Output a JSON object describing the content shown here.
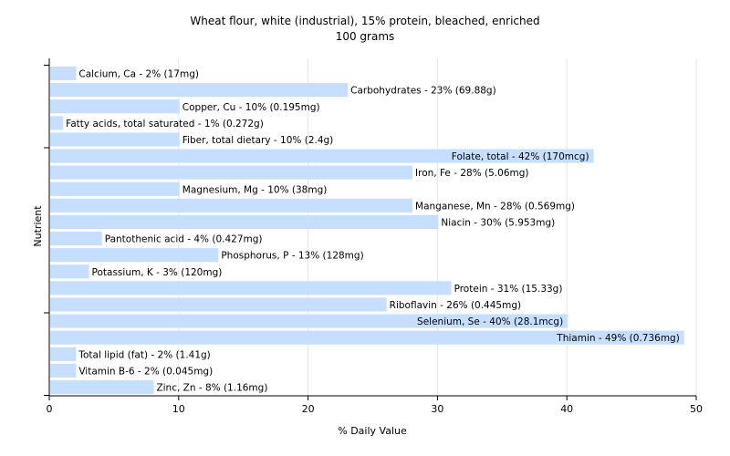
{
  "chart_data": {
    "type": "bar",
    "orientation": "horizontal",
    "title": "Wheat flour, white (industrial), 15% protein, bleached, enriched",
    "subtitle": "100 grams",
    "xlabel": "% Daily Value",
    "ylabel": "Nutrient",
    "xlim": [
      0,
      50
    ],
    "xticks": [
      0,
      10,
      20,
      30,
      40,
      50
    ],
    "grid": true,
    "bar_color": "#c6deff",
    "bars": [
      {
        "category": "Calcium, Ca",
        "value": 2,
        "label": "Calcium, Ca - 2% (17mg)"
      },
      {
        "category": "Carbohydrates",
        "value": 23,
        "label": "Carbohydrates - 23% (69.88g)"
      },
      {
        "category": "Copper, Cu",
        "value": 10,
        "label": "Copper, Cu - 10% (0.195mg)"
      },
      {
        "category": "Fatty acids, total saturated",
        "value": 1,
        "label": "Fatty acids, total saturated - 1% (0.272g)"
      },
      {
        "category": "Fiber, total dietary",
        "value": 10,
        "label": "Fiber, total dietary - 10% (2.4g)"
      },
      {
        "category": "Folate, total",
        "value": 42,
        "label": "Folate, total - 42% (170mcg)"
      },
      {
        "category": "Iron, Fe",
        "value": 28,
        "label": "Iron, Fe - 28% (5.06mg)"
      },
      {
        "category": "Magnesium, Mg",
        "value": 10,
        "label": "Magnesium, Mg - 10% (38mg)"
      },
      {
        "category": "Manganese, Mn",
        "value": 28,
        "label": "Manganese, Mn - 28% (0.569mg)"
      },
      {
        "category": "Niacin",
        "value": 30,
        "label": "Niacin - 30% (5.953mg)"
      },
      {
        "category": "Pantothenic acid",
        "value": 4,
        "label": "Pantothenic acid - 4% (0.427mg)"
      },
      {
        "category": "Phosphorus, P",
        "value": 13,
        "label": "Phosphorus, P - 13% (128mg)"
      },
      {
        "category": "Potassium, K",
        "value": 3,
        "label": "Potassium, K - 3% (120mg)"
      },
      {
        "category": "Protein",
        "value": 31,
        "label": "Protein - 31% (15.33g)"
      },
      {
        "category": "Riboflavin",
        "value": 26,
        "label": "Riboflavin - 26% (0.445mg)"
      },
      {
        "category": "Selenium, Se",
        "value": 40,
        "label": "Selenium, Se - 40% (28.1mcg)"
      },
      {
        "category": "Thiamin",
        "value": 49,
        "label": "Thiamin - 49% (0.736mg)"
      },
      {
        "category": "Total lipid (fat)",
        "value": 2,
        "label": "Total lipid (fat) - 2% (1.41g)"
      },
      {
        "category": "Vitamin B-6",
        "value": 2,
        "label": "Vitamin B-6 - 2% (0.045mg)"
      },
      {
        "category": "Zinc, Zn",
        "value": 8,
        "label": "Zinc, Zn - 8% (1.16mg)"
      }
    ]
  }
}
